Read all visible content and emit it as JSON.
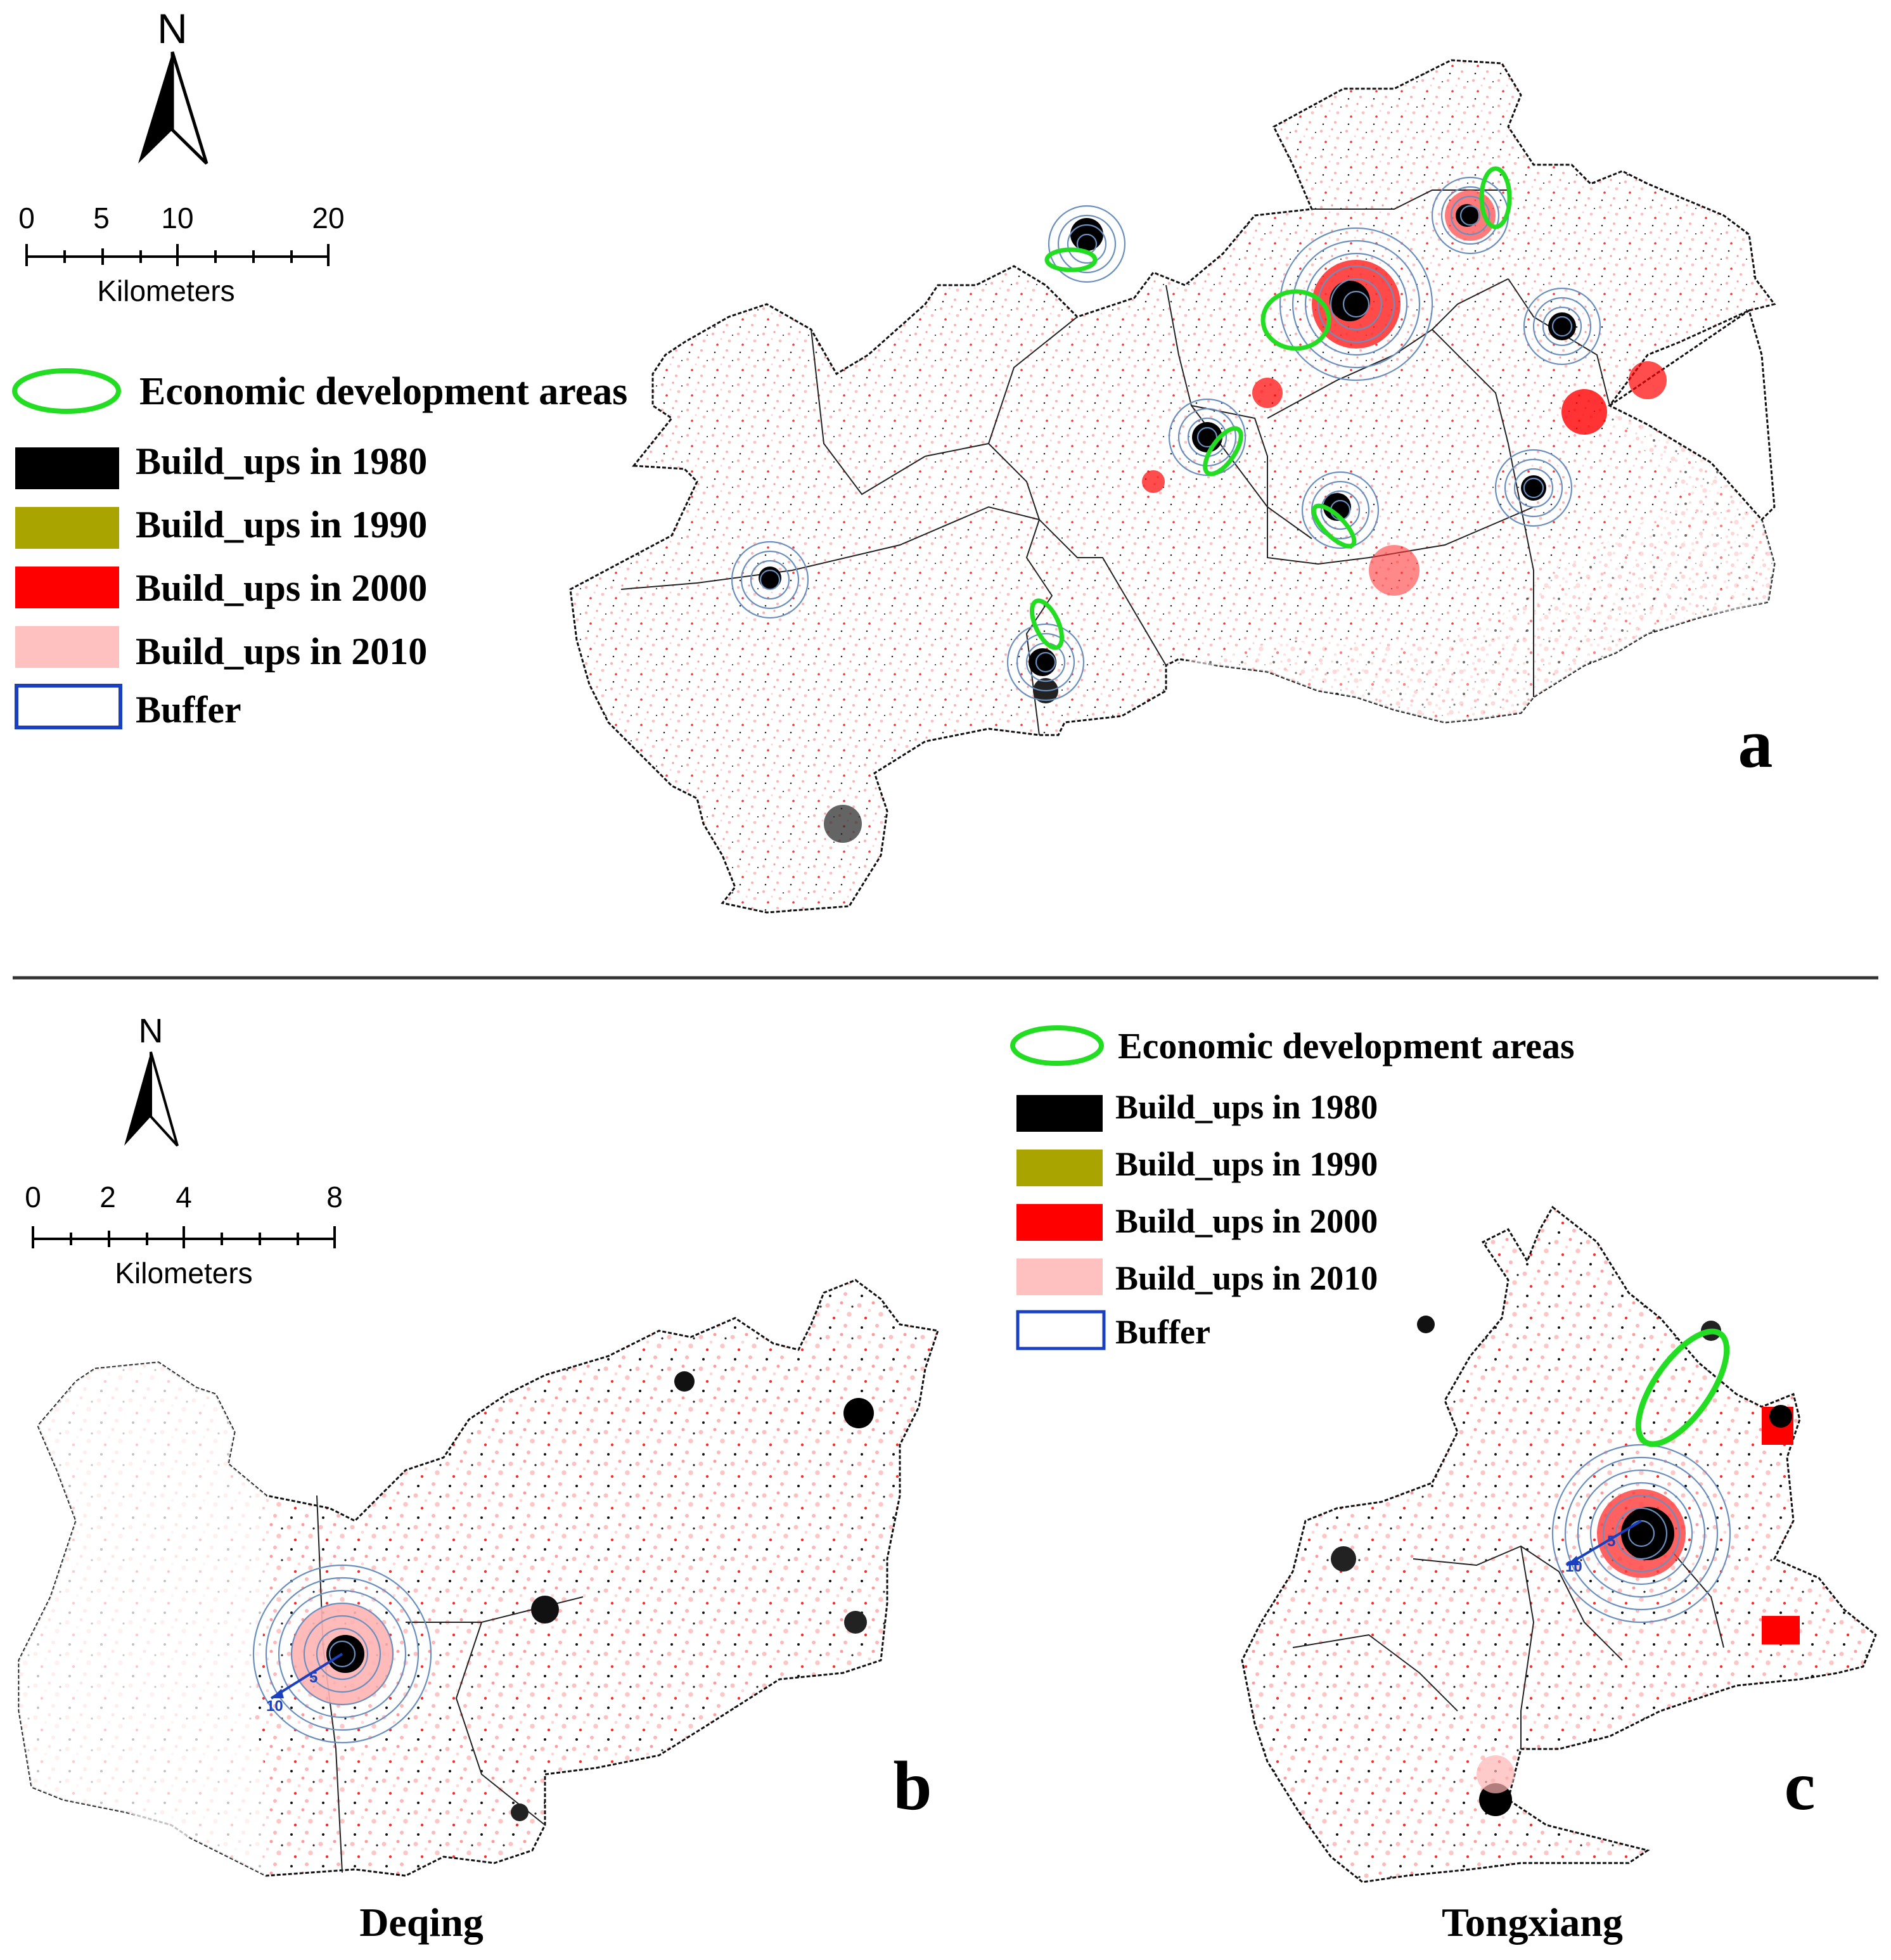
{
  "north_label": "N",
  "panel_a": {
    "letter": "a",
    "scale": {
      "ticks": [
        "0",
        "5",
        "10",
        "20"
      ],
      "unit": "Kilometers"
    },
    "legend": {
      "eda": "Economic development areas",
      "b1980": "Build_ups in 1980",
      "b1990": "Build_ups in 1990",
      "b2000": "Build_ups in 2000",
      "b2010": "Build_ups in 2010",
      "buffer": "Buffer"
    }
  },
  "panel_b": {
    "letter": "b",
    "name": "Deqing",
    "scale": {
      "ticks": [
        "0",
        "2",
        "4",
        "8"
      ],
      "unit": "Kilometers"
    },
    "buffer_labels": [
      "5",
      "10"
    ]
  },
  "panel_c": {
    "letter": "c",
    "name": "Tongxiang",
    "buffer_labels": [
      "5",
      "10"
    ],
    "legend": {
      "eda": "Economic development areas",
      "b1980": "Build_ups in 1980",
      "b1990": "Build_ups in 1990",
      "b2000": "Build_ups in 2000",
      "b2010": "Build_ups in 2010",
      "buffer": "Buffer"
    }
  },
  "colors": {
    "b1980": "#000000",
    "b1990": "#a9a400",
    "b2000": "#ff0000",
    "b2010": "#ffc0c0",
    "buffer": "#1a3fbf",
    "eda": "#22dd22",
    "buffer_ring": "#6a8fbf"
  }
}
